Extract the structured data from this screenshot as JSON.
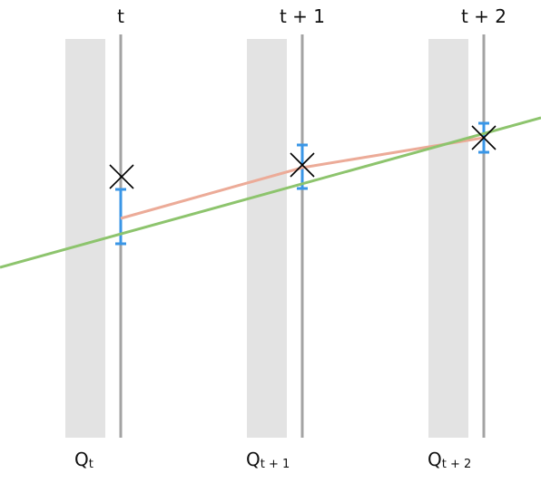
{
  "time_labels": [
    "t",
    "t + 1",
    "t + 2"
  ],
  "q_labels": [
    {
      "base": "Q",
      "sub": "t"
    },
    {
      "base": "Q",
      "sub": "t + 1"
    },
    {
      "base": "Q",
      "sub": "t + 2"
    }
  ],
  "colors": {
    "band": "#e3e3e3",
    "timeline": "#a3a3a3",
    "error_bar": "#3a96e6",
    "red_line": "#ecab98",
    "green_line": "#8dc46d",
    "marker": "#000000"
  }
}
